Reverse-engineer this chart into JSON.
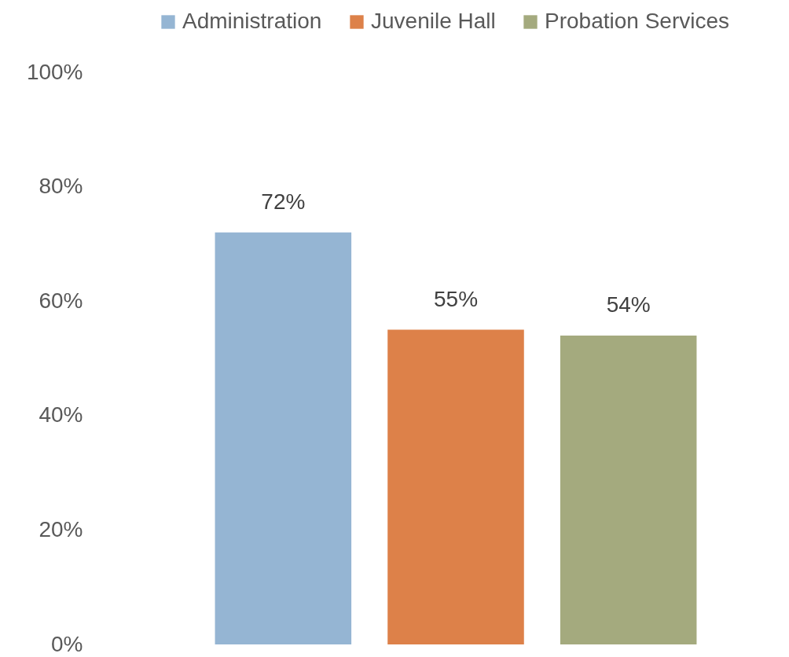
{
  "chart_data": {
    "type": "bar",
    "categories": [
      null
    ],
    "series": [
      {
        "name": "Administration",
        "color": "#95b5d3",
        "values": [
          72
        ],
        "value_labels": [
          "72%"
        ]
      },
      {
        "name": "Juvenile Hall",
        "color": "#dd8149",
        "values": [
          55
        ],
        "value_labels": [
          "55%"
        ]
      },
      {
        "name": "Probation Services",
        "color": "#a4aa7e",
        "values": [
          54
        ],
        "value_labels": [
          "54%"
        ]
      }
    ],
    "ylim": [
      0,
      100
    ],
    "yticks": [
      {
        "value": 0,
        "label": "0%"
      },
      {
        "value": 20,
        "label": "20%"
      },
      {
        "value": 40,
        "label": "40%"
      },
      {
        "value": 60,
        "label": "60%"
      },
      {
        "value": 80,
        "label": "80%"
      },
      {
        "value": 100,
        "label": "100%"
      }
    ],
    "grid": false,
    "legend": "top"
  }
}
